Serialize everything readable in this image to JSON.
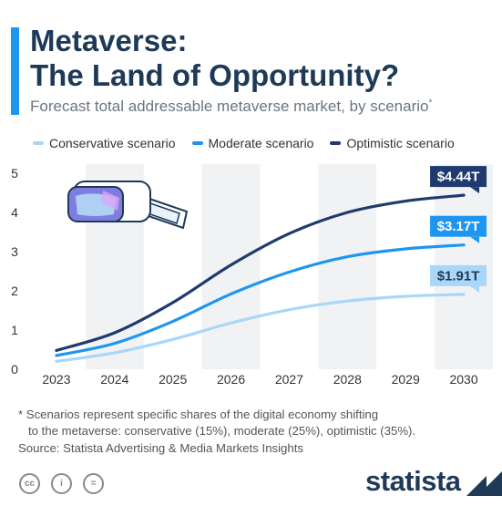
{
  "header": {
    "title_line1": "Metaverse:",
    "title_line2": "The Land of Opportunity?",
    "subtitle": "Forecast total addressable metaverse market, by scenario",
    "subtitle_mark": "*"
  },
  "legend": [
    {
      "label": "Conservative scenario",
      "color": "#a9d7f8"
    },
    {
      "label": "Moderate scenario",
      "color": "#1e96f0"
    },
    {
      "label": "Optimistic scenario",
      "color": "#1f3a6e"
    }
  ],
  "chart_data": {
    "type": "line",
    "x": [
      "2023",
      "2024",
      "2025",
      "2026",
      "2027",
      "2028",
      "2029",
      "2030"
    ],
    "ylim": [
      0,
      5
    ],
    "yticks": [
      0,
      1,
      2,
      3,
      4,
      5
    ],
    "grid": false,
    "legend_position": "top",
    "series": [
      {
        "name": "Conservative scenario",
        "color": "#a9d7f8",
        "values": [
          0.2,
          0.42,
          0.76,
          1.18,
          1.52,
          1.74,
          1.86,
          1.91
        ],
        "end_label": "$1.91T"
      },
      {
        "name": "Moderate scenario",
        "color": "#1e96f0",
        "values": [
          0.35,
          0.66,
          1.22,
          1.92,
          2.48,
          2.87,
          3.07,
          3.17
        ],
        "end_label": "$3.17T"
      },
      {
        "name": "Optimistic scenario",
        "color": "#1f3a6e",
        "values": [
          0.48,
          0.93,
          1.7,
          2.66,
          3.46,
          4.0,
          4.29,
          4.44
        ],
        "end_label": "$4.44T"
      }
    ]
  },
  "footer": {
    "note_line1": "* Scenarios represent specific shares of the digital economy shifting",
    "note_line2": "to the metaverse: conservative (15%), moderate (25%), optimistic (35%).",
    "source": "Source: Statista Advertising & Media Markets Insights",
    "logo": "statista",
    "license_icons": [
      "cc-icon",
      "person-icon",
      "equals-icon"
    ],
    "license_glyphs": [
      "cc",
      "i",
      "="
    ]
  },
  "illustration": "vr-headset-icon"
}
